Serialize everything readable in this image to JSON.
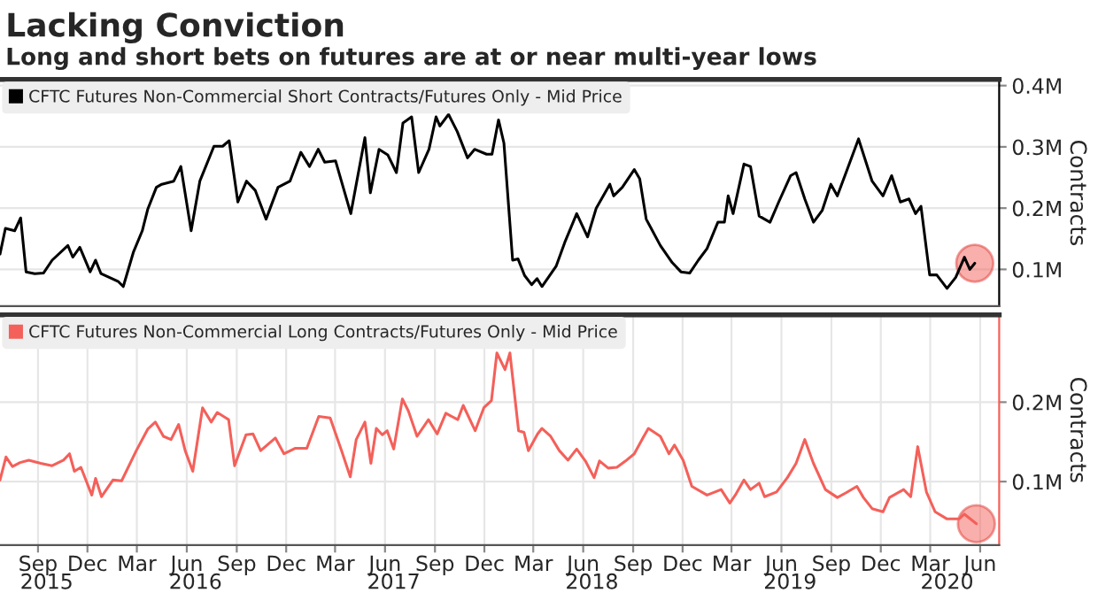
{
  "chart_data": [
    {
      "type": "line",
      "title": "Lacking Conviction",
      "subtitle": "Long and short bets on futures are at or near multi-year lows",
      "ylabel": "Contracts",
      "legend": "top left",
      "grid": true,
      "tick_labels": "y",
      "xlim": [
        "2015-07-07",
        "2020-07-20"
      ],
      "ylim": [
        0.04,
        0.41
      ],
      "yticks": [
        {
          "value": 0.1,
          "label": "0.1M"
        },
        {
          "value": 0.2,
          "label": "0.2M"
        },
        {
          "value": 0.3,
          "label": "0.3M"
        },
        {
          "value": 0.4,
          "label": "0.4M"
        }
      ],
      "series": [
        {
          "name": "CFTC Futures Non-Commercial Short Contracts/Futures Only - Mid Price",
          "color": "#000000",
          "x": [
            "2015-07-07",
            "2015-07-17",
            "2015-08-03",
            "2015-08-14",
            "2015-08-24",
            "2015-09-09",
            "2015-09-25",
            "2015-10-11",
            "2015-11-09",
            "2015-11-18",
            "2015-12-01",
            "2015-12-20",
            "2015-12-30",
            "2016-01-09",
            "2016-02-10",
            "2016-02-19",
            "2016-03-09",
            "2016-03-25",
            "2016-04-04",
            "2016-04-20",
            "2016-04-30",
            "2016-05-22",
            "2016-06-04",
            "2016-06-23",
            "2016-07-09",
            "2016-08-04",
            "2016-08-20",
            "2016-09-01",
            "2016-09-17",
            "2016-10-03",
            "2016-10-19",
            "2016-11-08",
            "2016-11-30",
            "2016-12-22",
            "2017-01-11",
            "2017-01-27",
            "2017-02-12",
            "2017-02-24",
            "2017-03-16",
            "2017-04-13",
            "2017-05-09",
            "2017-05-19",
            "2017-06-04",
            "2017-06-20",
            "2017-07-06",
            "2017-07-18",
            "2017-08-03",
            "2017-08-16",
            "2017-09-04",
            "2017-09-17",
            "2017-09-24",
            "2017-10-10",
            "2017-10-26",
            "2017-11-14",
            "2017-11-27",
            "2017-12-19",
            "2017-12-29",
            "2018-01-10",
            "2018-01-20",
            "2018-02-05",
            "2018-02-15",
            "2018-02-27",
            "2018-03-12",
            "2018-03-22",
            "2018-03-31",
            "2018-04-26",
            "2018-05-12",
            "2018-06-03",
            "2018-06-23",
            "2018-07-09",
            "2018-08-03",
            "2018-08-10",
            "2018-08-26",
            "2018-09-17",
            "2018-09-27",
            "2018-10-09",
            "2018-11-04",
            "2018-11-26",
            "2018-12-12",
            "2018-12-28",
            "2019-01-13",
            "2019-01-29",
            "2019-02-18",
            "2019-03-02",
            "2019-03-09",
            "2019-03-18",
            "2019-04-07",
            "2019-04-19",
            "2019-05-05",
            "2019-05-25",
            "2019-06-10",
            "2019-07-02",
            "2019-07-12",
            "2019-07-28",
            "2019-08-13",
            "2019-08-29",
            "2019-09-14",
            "2019-09-26",
            "2019-10-12",
            "2019-11-04",
            "2019-11-29",
            "2019-12-19",
            "2020-01-04",
            "2020-01-20",
            "2020-02-05",
            "2020-02-17",
            "2020-02-27",
            "2020-03-14",
            "2020-03-27",
            "2020-04-15",
            "2020-05-01",
            "2020-05-17",
            "2020-05-27",
            "2020-06-05"
          ],
          "values": [
            0.125,
            0.167,
            0.163,
            0.184,
            0.096,
            0.093,
            0.094,
            0.115,
            0.139,
            0.12,
            0.136,
            0.096,
            0.115,
            0.093,
            0.08,
            0.072,
            0.129,
            0.163,
            0.198,
            0.234,
            0.239,
            0.244,
            0.268,
            0.163,
            0.244,
            0.301,
            0.301,
            0.31,
            0.21,
            0.244,
            0.229,
            0.182,
            0.234,
            0.244,
            0.291,
            0.268,
            0.296,
            0.275,
            0.277,
            0.191,
            0.315,
            0.225,
            0.296,
            0.287,
            0.258,
            0.339,
            0.349,
            0.258,
            0.296,
            0.349,
            0.334,
            0.353,
            0.325,
            0.282,
            0.296,
            0.288,
            0.288,
            0.344,
            0.306,
            0.115,
            0.117,
            0.09,
            0.075,
            0.085,
            0.072,
            0.105,
            0.144,
            0.191,
            0.153,
            0.2,
            0.239,
            0.22,
            0.234,
            0.263,
            0.248,
            0.182,
            0.139,
            0.111,
            0.096,
            0.094,
            0.115,
            0.134,
            0.177,
            0.177,
            0.22,
            0.191,
            0.272,
            0.268,
            0.187,
            0.177,
            0.21,
            0.253,
            0.258,
            0.215,
            0.177,
            0.196,
            0.239,
            0.22,
            0.258,
            0.313,
            0.244,
            0.22,
            0.253,
            0.21,
            0.215,
            0.191,
            0.203,
            0.091,
            0.091,
            0.069,
            0.087,
            0.12,
            0.1,
            0.11
          ]
        }
      ]
    },
    {
      "type": "line",
      "ylabel": "Contracts",
      "legend": "top left",
      "grid": true,
      "xlim": [
        "2015-07-07",
        "2020-07-20"
      ],
      "ylim": [
        0.02,
        0.31
      ],
      "xticks": [
        {
          "value": "2015-09-15",
          "label": "Sep"
        },
        {
          "value": "2015-12-15",
          "label": "Dec"
        },
        {
          "value": "2016-03-15",
          "label": "Mar"
        },
        {
          "value": "2016-06-15",
          "label": "Jun"
        },
        {
          "value": "2016-09-15",
          "label": "Sep"
        },
        {
          "value": "2016-12-15",
          "label": "Dec"
        },
        {
          "value": "2017-03-15",
          "label": "Mar"
        },
        {
          "value": "2017-06-15",
          "label": "Jun"
        },
        {
          "value": "2017-09-15",
          "label": "Sep"
        },
        {
          "value": "2017-12-15",
          "label": "Dec"
        },
        {
          "value": "2018-03-15",
          "label": "Mar"
        },
        {
          "value": "2018-06-15",
          "label": "Jun"
        },
        {
          "value": "2018-09-15",
          "label": "Sep"
        },
        {
          "value": "2018-12-15",
          "label": "Dec"
        },
        {
          "value": "2019-03-15",
          "label": "Mar"
        },
        {
          "value": "2019-06-15",
          "label": "Jun"
        },
        {
          "value": "2019-09-15",
          "label": "Sep"
        },
        {
          "value": "2019-12-15",
          "label": "Dec"
        },
        {
          "value": "2020-03-15",
          "label": "Mar"
        },
        {
          "value": "2020-06-15",
          "label": "Jun"
        }
      ],
      "x2lim": [
        "2015-07-07",
        "2020-07-20"
      ],
      "x2ticks": [
        {
          "value": "2015-10-01",
          "label": "2015"
        },
        {
          "value": "2016-07-01",
          "label": "2016"
        },
        {
          "value": "2017-07-01",
          "label": "2017"
        },
        {
          "value": "2018-07-01",
          "label": "2018"
        },
        {
          "value": "2019-07-01",
          "label": "2019"
        },
        {
          "value": "2020-04-15",
          "label": "2020"
        }
      ],
      "yticks": [
        {
          "value": 0.1,
          "label": "0.1M"
        },
        {
          "value": 0.2,
          "label": "0.2M"
        }
      ],
      "series": [
        {
          "name": "CFTC Futures Non-Commercial Long Contracts/Futures Only - Mid Price",
          "color": "#f4605a",
          "x": [
            "2015-07-07",
            "2015-07-18",
            "2015-07-30",
            "2015-08-13",
            "2015-08-29",
            "2015-09-20",
            "2015-10-11",
            "2015-11-01",
            "2015-11-12",
            "2015-11-21",
            "2015-12-03",
            "2015-12-23",
            "2015-12-30",
            "2016-01-10",
            "2016-01-31",
            "2016-02-16",
            "2016-03-14",
            "2016-04-04",
            "2016-04-18",
            "2016-05-03",
            "2016-05-17",
            "2016-05-31",
            "2016-06-12",
            "2016-06-26",
            "2016-07-14",
            "2016-07-30",
            "2016-08-10",
            "2016-08-31",
            "2016-09-11",
            "2016-10-02",
            "2016-10-15",
            "2016-10-29",
            "2016-11-25",
            "2016-12-11",
            "2017-01-01",
            "2017-01-22",
            "2017-02-13",
            "2017-03-06",
            "2017-03-27",
            "2017-04-12",
            "2017-04-23",
            "2017-05-09",
            "2017-05-20",
            "2017-05-30",
            "2017-06-10",
            "2017-06-19",
            "2017-07-01",
            "2017-07-17",
            "2017-07-28",
            "2017-08-13",
            "2017-09-03",
            "2017-09-19",
            "2017-10-05",
            "2017-10-27",
            "2017-11-06",
            "2017-11-28",
            "2017-12-14",
            "2017-12-28",
            "2018-01-07",
            "2018-01-22",
            "2018-01-31",
            "2018-02-16",
            "2018-02-26",
            "2018-03-06",
            "2018-03-23",
            "2018-03-31",
            "2018-04-16",
            "2018-05-02",
            "2018-05-18",
            "2018-06-03",
            "2018-06-19",
            "2018-07-05",
            "2018-07-15",
            "2018-07-31",
            "2018-08-16",
            "2018-09-01",
            "2018-09-17",
            "2018-10-03",
            "2018-10-13",
            "2018-11-04",
            "2018-11-20",
            "2018-11-30",
            "2018-12-16",
            "2019-01-01",
            "2019-01-29",
            "2019-02-24",
            "2019-03-12",
            "2019-03-22",
            "2019-04-07",
            "2019-04-19",
            "2019-05-05",
            "2019-05-15",
            "2019-06-06",
            "2019-06-26",
            "2019-07-12",
            "2019-07-28",
            "2019-08-13",
            "2019-09-04",
            "2019-09-26",
            "2019-10-12",
            "2019-11-01",
            "2019-11-13",
            "2019-11-29",
            "2019-12-19",
            "2019-12-31",
            "2020-01-26",
            "2020-02-08",
            "2020-02-21",
            "2020-03-08",
            "2020-03-24",
            "2020-04-15",
            "2020-05-07",
            "2020-05-17",
            "2020-06-08"
          ],
          "values": [
            0.102,
            0.131,
            0.119,
            0.124,
            0.127,
            0.123,
            0.12,
            0.127,
            0.135,
            0.113,
            0.118,
            0.083,
            0.104,
            0.081,
            0.102,
            0.101,
            0.139,
            0.166,
            0.175,
            0.157,
            0.153,
            0.172,
            0.139,
            0.113,
            0.193,
            0.175,
            0.187,
            0.178,
            0.12,
            0.159,
            0.16,
            0.139,
            0.155,
            0.135,
            0.142,
            0.142,
            0.182,
            0.18,
            0.139,
            0.106,
            0.153,
            0.175,
            0.123,
            0.167,
            0.159,
            0.164,
            0.141,
            0.204,
            0.189,
            0.157,
            0.178,
            0.16,
            0.186,
            0.178,
            0.196,
            0.164,
            0.193,
            0.202,
            0.262,
            0.241,
            0.262,
            0.164,
            0.162,
            0.139,
            0.16,
            0.167,
            0.157,
            0.139,
            0.127,
            0.141,
            0.126,
            0.105,
            0.126,
            0.117,
            0.118,
            0.126,
            0.135,
            0.155,
            0.167,
            0.157,
            0.135,
            0.146,
            0.127,
            0.094,
            0.083,
            0.09,
            0.073,
            0.083,
            0.102,
            0.09,
            0.098,
            0.081,
            0.087,
            0.105,
            0.123,
            0.153,
            0.123,
            0.09,
            0.08,
            0.086,
            0.094,
            0.08,
            0.066,
            0.062,
            0.08,
            0.09,
            0.081,
            0.144,
            0.087,
            0.062,
            0.053,
            0.053,
            0.059,
            0.047
          ]
        }
      ]
    }
  ]
}
